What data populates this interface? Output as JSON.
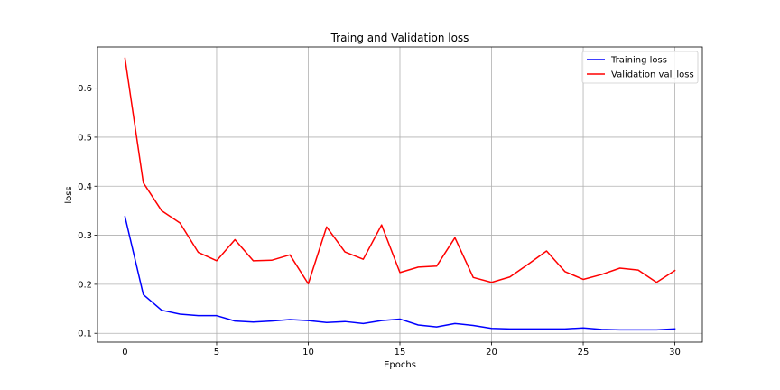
{
  "chart_data": {
    "type": "line",
    "title": "Traing and Validation loss",
    "xlabel": "Epochs",
    "ylabel": "loss",
    "xlim": [
      -1.5,
      31.5
    ],
    "ylim": [
      0.082,
      0.684
    ],
    "xticks": [
      0,
      5,
      10,
      15,
      20,
      25,
      30
    ],
    "yticks": [
      0.1,
      0.2,
      0.3,
      0.4,
      0.5,
      0.6
    ],
    "grid": true,
    "legend_position": "top-right",
    "x": [
      0,
      1,
      2,
      3,
      4,
      5,
      6,
      7,
      8,
      9,
      10,
      11,
      12,
      13,
      14,
      15,
      16,
      17,
      18,
      19,
      20,
      21,
      22,
      23,
      24,
      25,
      26,
      27,
      28,
      29,
      30
    ],
    "series": [
      {
        "name": "Training loss",
        "color": "#0000ff",
        "values": [
          0.338,
          0.179,
          0.147,
          0.139,
          0.136,
          0.136,
          0.125,
          0.123,
          0.125,
          0.128,
          0.126,
          0.122,
          0.124,
          0.12,
          0.126,
          0.129,
          0.117,
          0.113,
          0.12,
          0.116,
          0.11,
          0.109,
          0.109,
          0.109,
          0.109,
          0.111,
          0.108,
          0.107,
          0.107,
          0.107,
          0.109
        ]
      },
      {
        "name": "Validation val_loss",
        "color": "#ff0000",
        "values": [
          0.661,
          0.407,
          0.35,
          0.325,
          0.265,
          0.248,
          0.291,
          0.248,
          0.249,
          0.26,
          0.201,
          0.317,
          0.266,
          0.251,
          0.321,
          0.224,
          0.235,
          0.237,
          0.295,
          0.214,
          0.204,
          0.215,
          0.241,
          0.268,
          0.226,
          0.21,
          0.22,
          0.233,
          0.229,
          0.204,
          0.228
        ]
      }
    ]
  }
}
